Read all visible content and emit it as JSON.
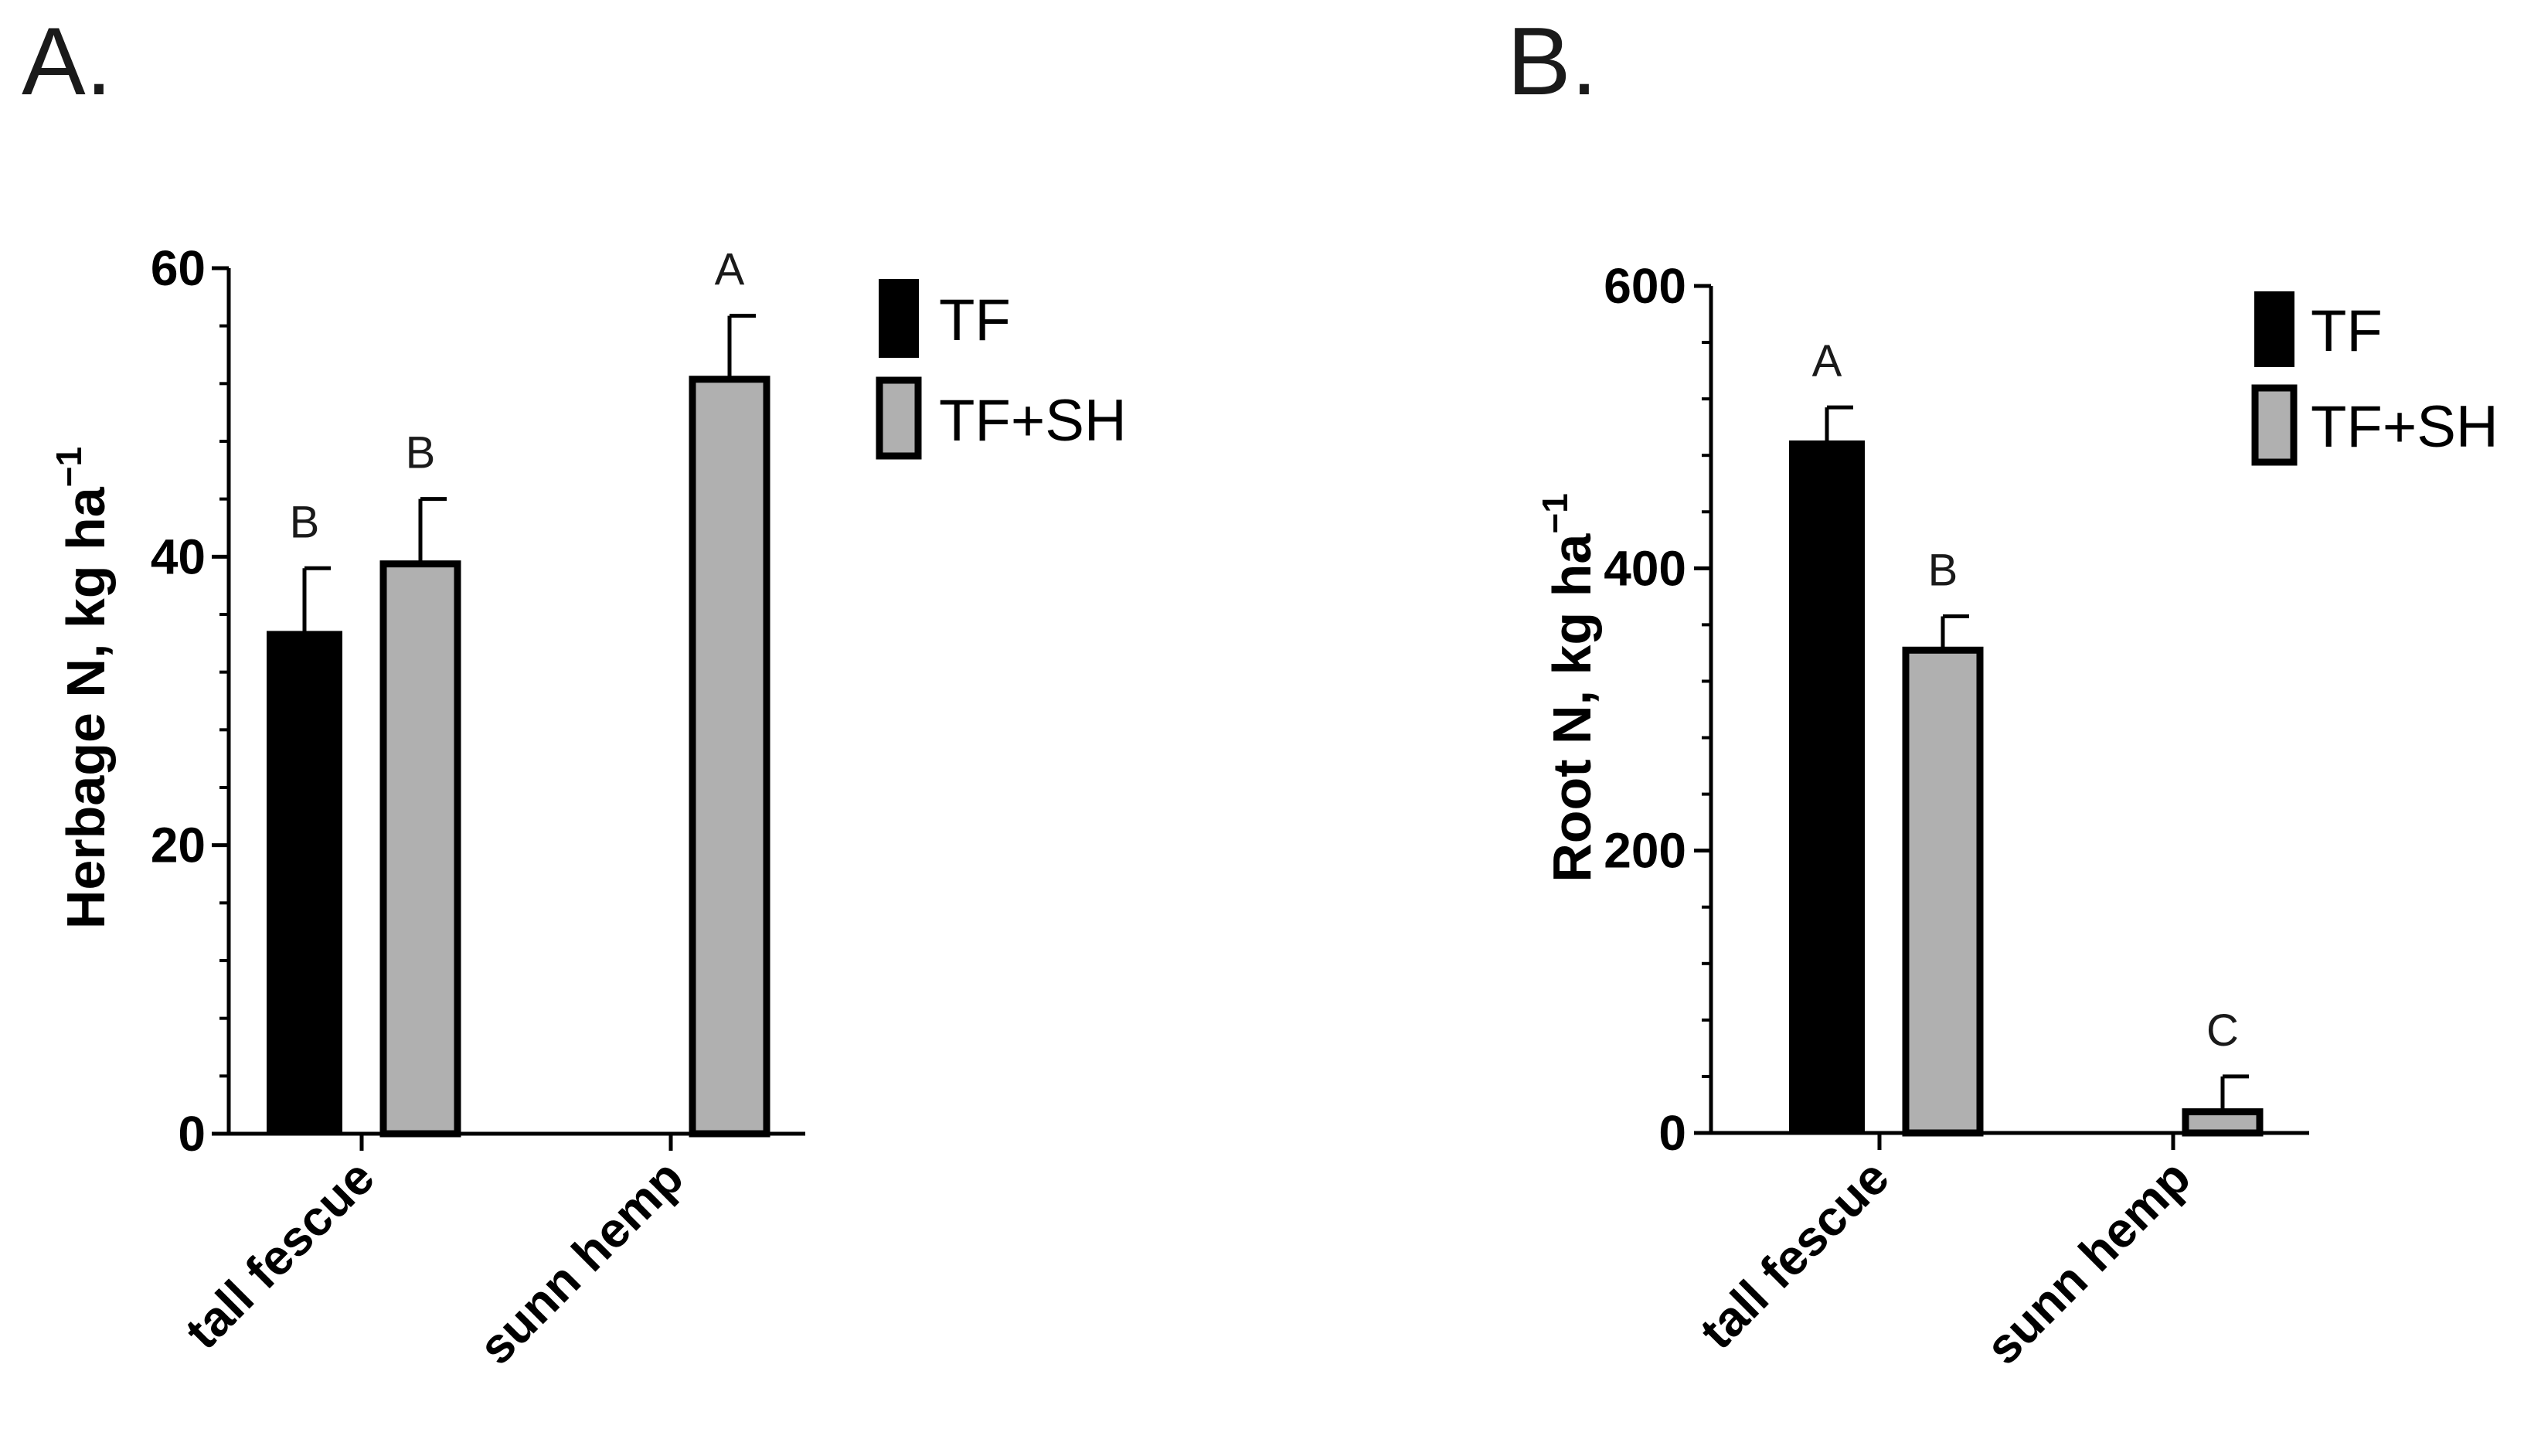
{
  "colors": {
    "TF": "#000000",
    "TF+SH": "#b0b0b0",
    "outline": "#000000"
  },
  "chart_data": [
    {
      "panel": "A.",
      "type": "bar",
      "ylabel": "Herbage N, kg ha",
      "ylabel_sup": "−1",
      "xlabel": "",
      "ylim": [
        0,
        60
      ],
      "yticks": [
        0,
        20,
        40,
        60
      ],
      "categories": [
        "tall fescue",
        "sunn hemp"
      ],
      "legend": [
        "TF",
        "TF+SH"
      ],
      "legend_position": "right",
      "bars": [
        {
          "category": "tall fescue",
          "series": "TF",
          "value": 34.8,
          "error": 4.4,
          "letter": "B"
        },
        {
          "category": "tall fescue",
          "series": "TF+SH",
          "value": 39.5,
          "error": 4.5,
          "letter": "B"
        },
        {
          "category": "sunn hemp",
          "series": "TF+SH",
          "value": 52.3,
          "error": 4.4,
          "letter": "A"
        }
      ]
    },
    {
      "panel": "B.",
      "type": "bar",
      "ylabel": "Root N, kg ha",
      "ylabel_sup": "−1",
      "xlabel": "",
      "ylim": [
        0,
        600
      ],
      "yticks": [
        0,
        200,
        400,
        600
      ],
      "categories": [
        "tall fescue",
        "sunn hemp"
      ],
      "legend": [
        "TF",
        "TF+SH"
      ],
      "legend_position": "right",
      "bars": [
        {
          "category": "tall fescue",
          "series": "TF",
          "value": 490,
          "error": 24,
          "letter": "A"
        },
        {
          "category": "tall fescue",
          "series": "TF+SH",
          "value": 342,
          "error": 24,
          "letter": "B"
        },
        {
          "category": "sunn hemp",
          "series": "TF+SH",
          "value": 15,
          "error": 25,
          "letter": "C"
        }
      ]
    }
  ]
}
